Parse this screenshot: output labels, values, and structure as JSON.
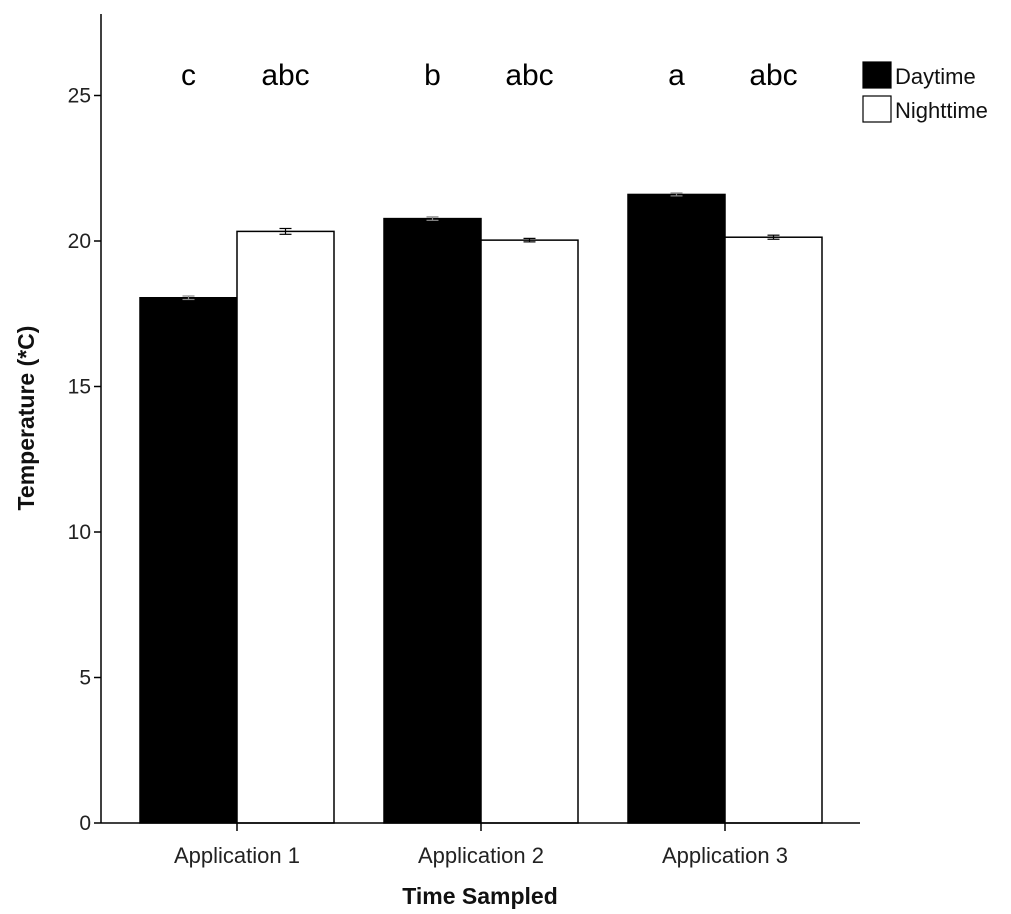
{
  "chart_data": {
    "type": "bar",
    "categories": [
      "Application 1",
      "Application 2",
      "Application 3"
    ],
    "series": [
      {
        "name": "Daytime",
        "values": [
          18.05,
          20.77,
          21.6
        ],
        "errors": [
          0.06,
          0.06,
          0.05
        ],
        "color": "#000000",
        "significance": [
          "c",
          "b",
          "a"
        ]
      },
      {
        "name": "Nighttime",
        "values": [
          20.33,
          20.03,
          20.13
        ],
        "errors": [
          0.1,
          0.06,
          0.07
        ],
        "color": "#ffffff",
        "significance": [
          "abc",
          "abc",
          "abc"
        ]
      }
    ],
    "yticks": [
      "0",
      "5",
      "10",
      "15",
      "20",
      "25"
    ],
    "xlabel": "Time Sampled",
    "ylabel": "Temperature (*C)",
    "ylim": [
      0,
      27.5
    ],
    "grid": false,
    "legend_position": "top-right"
  }
}
